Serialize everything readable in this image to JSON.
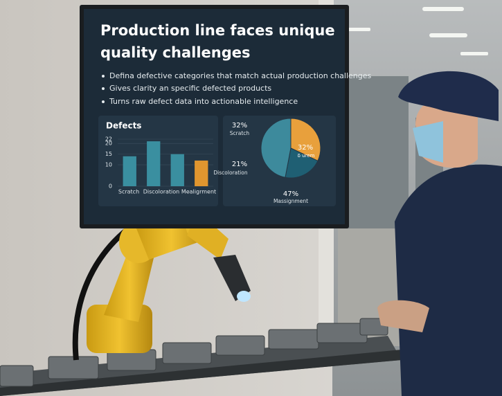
{
  "screen": {
    "title": [
      "Production line faces unique",
      "quality challenges"
    ],
    "bullets": [
      "Defina defective categories that match actual production challenges",
      "Gives clarity an specific defected products",
      "Turns raw defect data into actionable intelligence"
    ]
  },
  "chart_data": [
    {
      "type": "bar",
      "title": "Defects",
      "categories": [
        "Scratch",
        "Discoloration",
        null,
        "Mealigrment"
      ],
      "values": [
        14,
        21,
        15,
        12
      ],
      "colors": [
        "#3a8fa0",
        "#3a8fa0",
        "#3a8fa0",
        "#e0962f"
      ],
      "ylim": [
        0,
        22
      ],
      "yticks": [
        0,
        10,
        15,
        20,
        22
      ],
      "grid": true
    },
    {
      "type": "pie",
      "categories": [
        "Scratch",
        "Discoloration",
        "Massignment"
      ],
      "values": [
        32,
        21,
        47
      ],
      "value_labels": [
        "32%",
        "21%",
        "47%"
      ],
      "colors": [
        "#e8a03c",
        "#1f5f73",
        "#3d8a9c"
      ],
      "inner_label": "δ urem"
    }
  ]
}
